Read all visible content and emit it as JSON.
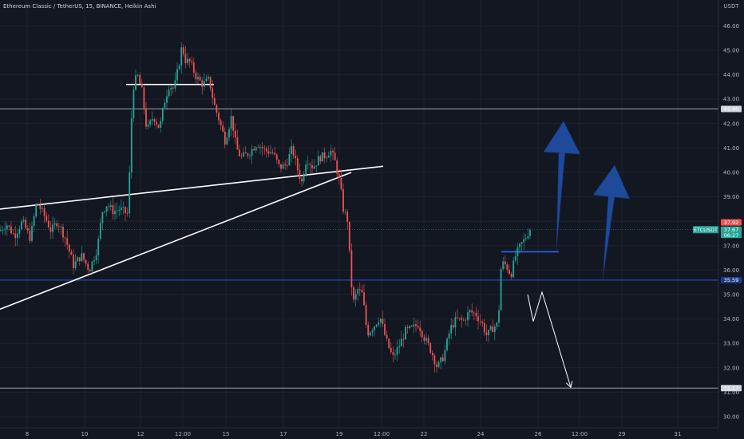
{
  "header": {
    "title": "Ethereum Classic / TetherUS, 15, BINANCE, Heikin Ashi",
    "price_unit": "USDT"
  },
  "chart_data": {
    "type": "candlestick",
    "symbol": "ETCUSDT",
    "interval": "15",
    "exchange": "BINANCE",
    "style": "Heikin Ashi",
    "ylim": [
      29.6,
      47.0
    ],
    "price_ticks": [
      30.0,
      31.0,
      32.0,
      33.0,
      34.0,
      35.0,
      36.0,
      37.0,
      38.0,
      39.0,
      40.0,
      41.0,
      42.0,
      43.0,
      44.0,
      45.0,
      46.0
    ],
    "time_ticks": [
      "8",
      "10",
      "12",
      "12:00",
      "15",
      "17",
      "19",
      "12:00",
      "22",
      "24",
      "26",
      "12:00",
      "29",
      "31"
    ],
    "price_path": [
      [
        0,
        37.6
      ],
      [
        8,
        37.9
      ],
      [
        18,
        37.4
      ],
      [
        28,
        38.0
      ],
      [
        38,
        37.3
      ],
      [
        46,
        38.8
      ],
      [
        56,
        38.2
      ],
      [
        64,
        37.6
      ],
      [
        72,
        38.0
      ],
      [
        82,
        37.3
      ],
      [
        92,
        36.2
      ],
      [
        102,
        36.6
      ],
      [
        112,
        36.0
      ],
      [
        122,
        36.9
      ],
      [
        128,
        38.4
      ],
      [
        134,
        38.7
      ],
      [
        142,
        38.4
      ],
      [
        150,
        38.5
      ],
      [
        160,
        38.3
      ],
      [
        163,
        40.5
      ],
      [
        166,
        43.4
      ],
      [
        172,
        44.0
      ],
      [
        178,
        43.3
      ],
      [
        184,
        41.7
      ],
      [
        192,
        42.3
      ],
      [
        200,
        41.8
      ],
      [
        206,
        42.9
      ],
      [
        212,
        43.6
      ],
      [
        218,
        43.4
      ],
      [
        224,
        44.4
      ],
      [
        228,
        45.2
      ],
      [
        232,
        44.6
      ],
      [
        238,
        44.5
      ],
      [
        246,
        43.9
      ],
      [
        254,
        43.6
      ],
      [
        262,
        43.8
      ],
      [
        268,
        42.8
      ],
      [
        274,
        42.2
      ],
      [
        282,
        41.3
      ],
      [
        290,
        42.3
      ],
      [
        296,
        41.0
      ],
      [
        302,
        40.6
      ],
      [
        312,
        40.8
      ],
      [
        322,
        41.2
      ],
      [
        332,
        40.9
      ],
      [
        342,
        40.8
      ],
      [
        350,
        40.2
      ],
      [
        358,
        40.3
      ],
      [
        366,
        41.0
      ],
      [
        372,
        40.2
      ],
      [
        378,
        39.6
      ],
      [
        384,
        40.6
      ],
      [
        392,
        40.2
      ],
      [
        400,
        40.6
      ],
      [
        408,
        40.7
      ],
      [
        414,
        40.9
      ],
      [
        420,
        40.4
      ],
      [
        426,
        39.5
      ],
      [
        430,
        38.5
      ],
      [
        436,
        38.0
      ],
      [
        438,
        36.5
      ],
      [
        442,
        34.6
      ],
      [
        448,
        35.2
      ],
      [
        454,
        35.0
      ],
      [
        460,
        33.4
      ],
      [
        468,
        33.7
      ],
      [
        476,
        34.1
      ],
      [
        484,
        33.1
      ],
      [
        492,
        32.4
      ],
      [
        500,
        32.9
      ],
      [
        508,
        33.5
      ],
      [
        516,
        33.6
      ],
      [
        524,
        33.8
      ],
      [
        532,
        33.2
      ],
      [
        540,
        32.7
      ],
      [
        548,
        32.0
      ],
      [
        556,
        32.5
      ],
      [
        564,
        33.6
      ],
      [
        572,
        34.0
      ],
      [
        580,
        33.9
      ],
      [
        588,
        34.3
      ],
      [
        596,
        34.2
      ],
      [
        604,
        33.8
      ],
      [
        610,
        33.3
      ],
      [
        616,
        33.6
      ],
      [
        624,
        33.8
      ],
      [
        628,
        36.3
      ],
      [
        634,
        36.2
      ],
      [
        640,
        35.8
      ],
      [
        646,
        36.6
      ],
      [
        652,
        37.0
      ],
      [
        658,
        37.3
      ],
      [
        664,
        37.7
      ]
    ],
    "levels": [
      {
        "price": 42.6,
        "label": "42.60",
        "color": "#b2b5be"
      },
      {
        "price": 35.59,
        "label": "35.59",
        "color": "#2962ff"
      },
      {
        "price": 31.17,
        "label": "31.17",
        "color": "#b2b5be"
      }
    ],
    "current_price": {
      "price": 37.67,
      "symbol_label": "ETCUSDT",
      "price_label": "37.67",
      "sub_label": "06:27",
      "color": "#26a69a"
    },
    "high_label": {
      "price": 37.92,
      "label": "37.92",
      "color": "#ef5350"
    }
  },
  "drawings": {
    "lines": [
      {
        "from": [
          0,
          38.5
        ],
        "to": [
          480,
          40.25
        ],
        "color": "#ffffff"
      },
      {
        "from": [
          0,
          34.4
        ],
        "to": [
          440,
          40.0
        ],
        "color": "#ffffff"
      },
      {
        "from": [
          158,
          43.6
        ],
        "to": [
          268,
          43.6
        ],
        "color": "#ffffff"
      },
      {
        "from": [
          628,
          36.75
        ],
        "to": [
          700,
          36.75
        ],
        "color": "#2962ff"
      }
    ],
    "arrows_up": [
      {
        "tail": [
          697,
          36.8
        ],
        "head": [
          706,
          42.1
        ],
        "color": "#1e4a99"
      },
      {
        "tail": [
          755,
          35.6
        ],
        "head": [
          770,
          40.3
        ],
        "color": "#1e4a99"
      }
    ],
    "zigzag": {
      "points": [
        [
          661,
          35.0
        ],
        [
          668,
          33.9
        ],
        [
          679,
          35.1
        ],
        [
          715,
          31.2
        ]
      ],
      "color": "#ffffff"
    }
  }
}
